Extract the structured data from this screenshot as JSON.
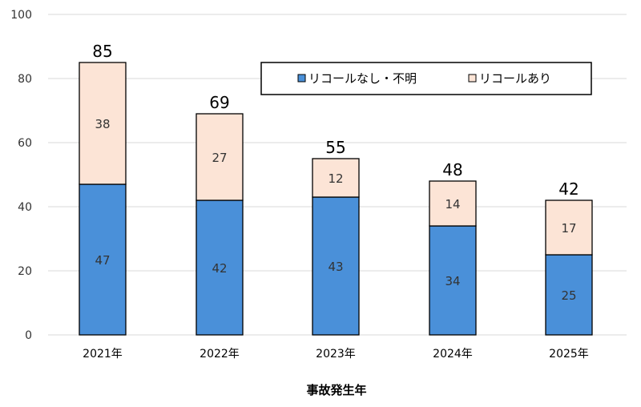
{
  "chart_data": {
    "type": "bar",
    "stacked": true,
    "categories": [
      "2021年",
      "2022年",
      "2023年",
      "2024年",
      "2025年"
    ],
    "series": [
      {
        "name": "リコールなし・不明",
        "values": [
          47,
          42,
          43,
          34,
          25
        ],
        "color": "#4a90d9"
      },
      {
        "name": "リコールあり",
        "values": [
          38,
          27,
          12,
          14,
          17
        ],
        "color": "#fce4d6"
      }
    ],
    "totals": [
      85,
      69,
      55,
      48,
      42
    ],
    "xlabel": "事故発生年",
    "ylabel": "",
    "ylim": [
      0,
      100
    ],
    "yticks": [
      0,
      20,
      40,
      60,
      80,
      100
    ],
    "grid": true,
    "legend": "top-right"
  }
}
